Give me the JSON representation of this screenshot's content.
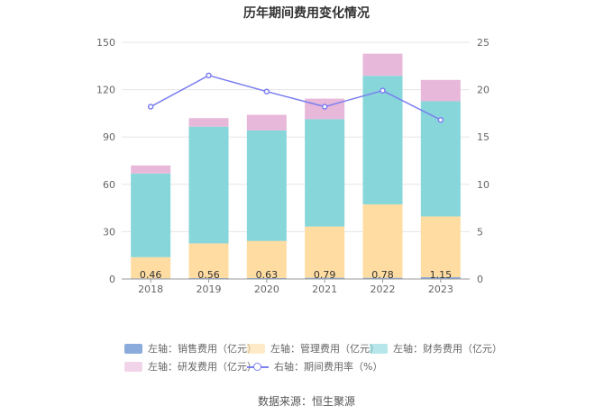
{
  "title": "历年期间费用变化情况",
  "source": "数据来源：恒生聚源",
  "colors": {
    "sales": "#8aabdc",
    "admin": "#ffdca1",
    "finance": "#86d6da",
    "rnd": "#e8b8da",
    "rate": "#7b7ff0"
  },
  "chart_data": {
    "type": "bar",
    "stacked": true,
    "categories": [
      "2018",
      "2019",
      "2020",
      "2021",
      "2022",
      "2023"
    ],
    "series": [
      {
        "name": "左轴：销售费用（亿元）",
        "key": "sales",
        "axis": "left",
        "values": [
          0.46,
          0.56,
          0.63,
          0.79,
          0.78,
          1.15
        ],
        "labels": [
          "0.46",
          "0.56",
          "0.63",
          "0.79",
          "0.78",
          "1.15"
        ]
      },
      {
        "name": "左轴：管理费用（亿元）",
        "key": "admin",
        "axis": "left",
        "values": [
          13.4,
          22.0,
          23.5,
          32.5,
          46.5,
          38.5
        ]
      },
      {
        "name": "左轴：财务费用（亿元）",
        "key": "finance",
        "axis": "left",
        "values": [
          53.0,
          74.0,
          70.0,
          68.0,
          81.5,
          73.0
        ]
      },
      {
        "name": "左轴：研发费用（亿元）",
        "key": "rnd",
        "axis": "left",
        "values": [
          5.1,
          5.4,
          9.9,
          13.0,
          14.0,
          13.5
        ]
      },
      {
        "name": "右轴：期间费用率（%）",
        "key": "rate",
        "axis": "right",
        "type": "line",
        "values": [
          18.2,
          21.5,
          19.8,
          18.2,
          19.9,
          16.8
        ]
      }
    ],
    "left_axis": {
      "min": 0,
      "max": 150,
      "ticks": [
        "0",
        "30",
        "60",
        "90",
        "120",
        "150"
      ]
    },
    "right_axis": {
      "min": 0,
      "max": 25,
      "ticks": [
        "0",
        "5",
        "10",
        "15",
        "20",
        "25"
      ]
    },
    "grid": true,
    "legend_position": "bottom"
  }
}
